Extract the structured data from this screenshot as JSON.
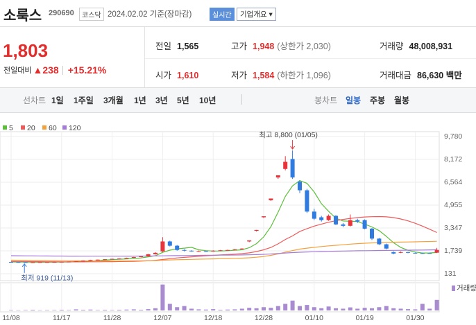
{
  "header": {
    "name": "소룩스",
    "code": "290690",
    "market": "코스닥",
    "date": "2024.02.02 기준(장마감)",
    "realtime": "실시간",
    "company_info": "기업개요 ▾"
  },
  "price": {
    "current": "1,803",
    "change_label": "전일대비",
    "change": "▲238",
    "change_rate": "+15.21%"
  },
  "info": [
    {
      "label": "전일",
      "value": "1,565"
    },
    {
      "label": "고가",
      "value": "1,948",
      "note": "(상한가 2,030)"
    },
    {
      "label": "거래량",
      "value": "48,008,931"
    },
    {
      "label": "시가",
      "value": "1,610"
    },
    {
      "label": "저가",
      "value": "1,584",
      "note": "(하한가 1,096)"
    },
    {
      "label": "거래대금",
      "value": "86,630",
      "unit": "백만"
    }
  ],
  "tabs": {
    "line_chart": "선차트",
    "line_periods": [
      "1일",
      "1주일",
      "3개월",
      "1년",
      "3년",
      "5년",
      "10년"
    ],
    "candle_chart": "봉차트",
    "candle_periods": [
      "일봉",
      "주봉",
      "월봉"
    ]
  },
  "chart_data": {
    "type": "candlestick",
    "categories": [
      "11/08",
      null,
      null,
      null,
      null,
      null,
      null,
      "11/17",
      null,
      null,
      null,
      null,
      null,
      null,
      "11/28",
      null,
      null,
      null,
      null,
      null,
      null,
      "12/07",
      null,
      null,
      null,
      null,
      null,
      null,
      "12/18",
      null,
      null,
      null,
      null,
      null,
      null,
      "12/28",
      null,
      null,
      null,
      null,
      null,
      null,
      "01/10",
      null,
      null,
      null,
      null,
      null,
      null,
      "01/19",
      null,
      null,
      null,
      null,
      null,
      null,
      "01/30",
      null,
      null,
      null
    ],
    "open": [
      960,
      950,
      940,
      925,
      935,
      945,
      950,
      960,
      970,
      980,
      1000,
      1050,
      1100,
      1120,
      1150,
      1180,
      1200,
      1250,
      1300,
      1350,
      1500,
      1700,
      2400,
      2100,
      1800,
      1750,
      1700,
      1720,
      1700,
      1750,
      1780,
      1800,
      1850,
      2400,
      3150,
      4100,
      5300,
      6900,
      7500,
      8200,
      6600,
      6000,
      4500,
      4100,
      3900,
      4200,
      3600,
      3500,
      3900,
      3900,
      3300,
      2600,
      2200,
      1650,
      1600,
      1650,
      1600,
      1580,
      1580,
      1610
    ],
    "high": [
      970,
      960,
      945,
      945,
      955,
      960,
      970,
      980,
      990,
      1010,
      1060,
      1110,
      1130,
      1160,
      1190,
      1210,
      1260,
      1310,
      1360,
      1520,
      1650,
      2700,
      2450,
      2150,
      1850,
      1780,
      1760,
      1740,
      1780,
      1800,
      1820,
      1870,
      1920,
      2470,
      3210,
      4170,
      5420,
      7050,
      8400,
      8800,
      6700,
      6100,
      4700,
      4200,
      4300,
      4250,
      3700,
      4300,
      4000,
      3950,
      3350,
      2650,
      2250,
      1700,
      1700,
      1680,
      1620,
      1600,
      1600,
      1948
    ],
    "low": [
      940,
      930,
      925,
      919,
      930,
      940,
      945,
      955,
      965,
      975,
      990,
      1040,
      1090,
      1110,
      1140,
      1170,
      1190,
      1240,
      1290,
      1340,
      1480,
      1650,
      2050,
      1750,
      1700,
      1680,
      1690,
      1680,
      1690,
      1730,
      1760,
      1790,
      1840,
      2350,
      3100,
      4050,
      5250,
      6800,
      7400,
      6800,
      5800,
      4400,
      3900,
      3800,
      3850,
      3550,
      3400,
      3450,
      3700,
      3250,
      2500,
      2150,
      1850,
      1500,
      1580,
      1570,
      1550,
      1540,
      1550,
      1584
    ],
    "close": [
      950,
      940,
      930,
      935,
      945,
      950,
      960,
      970,
      980,
      1000,
      1050,
      1100,
      1120,
      1150,
      1180,
      1200,
      1250,
      1300,
      1350,
      1500,
      1600,
      2400,
      2100,
      1800,
      1750,
      1700,
      1720,
      1700,
      1750,
      1780,
      1800,
      1850,
      1900,
      2470,
      3210,
      4170,
      5420,
      7050,
      8000,
      6900,
      6000,
      4500,
      4000,
      3900,
      4200,
      3600,
      3500,
      3900,
      3800,
      3300,
      2600,
      2200,
      1900,
      1550,
      1650,
      1600,
      1580,
      1560,
      1565,
      1803
    ],
    "up_color": "#e8353b",
    "down_color": "#2f7be0",
    "moving_averages": [
      {
        "name": "5",
        "color": "#5cbf3a",
        "values": [
          960,
          955,
          950,
          945,
          940,
          940,
          944,
          952,
          961,
          972,
          992,
          1020,
          1050,
          1084,
          1120,
          1150,
          1172,
          1200,
          1240,
          1320,
          1400,
          1630,
          1790,
          1880,
          1930,
          1990,
          1814,
          1754,
          1724,
          1730,
          1750,
          1780,
          1816,
          1960,
          2246,
          2720,
          3440,
          4464,
          5570,
          6308,
          6674,
          6490,
          5880,
          5060,
          4520,
          4040,
          3840,
          3820,
          3800,
          3620,
          3420,
          3160,
          2760,
          2310,
          1980,
          1780,
          1656,
          1588,
          1591,
          1622
        ]
      },
      {
        "name": "20",
        "color": "#ee5a5a",
        "values": [
          1000,
          995,
          990,
          985,
          980,
          975,
          972,
          970,
          968,
          966,
          966,
          968,
          970,
          975,
          980,
          988,
          995,
          1005,
          1020,
          1040,
          1070,
          1130,
          1190,
          1240,
          1280,
          1320,
          1355,
          1390,
          1420,
          1450,
          1480,
          1510,
          1545,
          1600,
          1690,
          1810,
          1980,
          2230,
          2540,
          2790,
          3100,
          3300,
          3480,
          3620,
          3750,
          3860,
          3950,
          4020,
          4080,
          4120,
          4140,
          4150,
          4130,
          4080,
          3980,
          3850,
          3680,
          3480,
          3260,
          3030
        ]
      },
      {
        "name": "60",
        "color": "#f5a13b",
        "values": [
          1080,
          1075,
          1070,
          1065,
          1060,
          1055,
          1050,
          1046,
          1042,
          1038,
          1035,
          1033,
          1031,
          1030,
          1030,
          1031,
          1033,
          1036,
          1040,
          1045,
          1052,
          1080,
          1100,
          1115,
          1128,
          1140,
          1152,
          1164,
          1176,
          1188,
          1200,
          1214,
          1228,
          1252,
          1290,
          1345,
          1420,
          1525,
          1650,
          1760,
          1860,
          1930,
          1990,
          2040,
          2090,
          2130,
          2170,
          2210,
          2245,
          2275,
          2300,
          2320,
          2335,
          2345,
          2355,
          2365,
          2375,
          2385,
          2395,
          2410
        ]
      },
      {
        "name": "120",
        "color": "#a57bd8",
        "values": [
          1400,
          1395,
          1390,
          1386,
          1382,
          1378,
          1375,
          1372,
          1370,
          1368,
          1366,
          1365,
          1364,
          1364,
          1365,
          1366,
          1368,
          1370,
          1373,
          1376,
          1380,
          1390,
          1398,
          1405,
          1410,
          1415,
          1420,
          1425,
          1430,
          1435,
          1440,
          1446,
          1452,
          1462,
          1476,
          1494,
          1518,
          1550,
          1586,
          1618,
          1644,
          1662,
          1678,
          1692,
          1705,
          1716,
          1726,
          1735,
          1743,
          1750,
          1756,
          1762,
          1768,
          1774,
          1780,
          1786,
          1792,
          1800,
          1808,
          1816
        ]
      }
    ],
    "volume": {
      "name": "거래량",
      "color": "#a98bd0",
      "values": [
        2000000,
        1000000,
        2000000,
        3000000,
        1000000,
        2000000,
        2000000,
        3000000,
        2000000,
        5000000,
        3000000,
        4000000,
        2000000,
        3000000,
        2000000,
        3000000,
        4000000,
        5000000,
        3000000,
        6000000,
        10000000,
        118000000,
        30000000,
        15000000,
        20000000,
        8000000,
        5000000,
        4000000,
        6000000,
        3000000,
        4000000,
        5000000,
        8000000,
        12000000,
        10000000,
        15000000,
        12000000,
        20000000,
        30000000,
        45000000,
        20000000,
        25000000,
        15000000,
        10000000,
        18000000,
        10000000,
        8000000,
        14000000,
        8000000,
        12000000,
        10000000,
        15000000,
        20000000,
        10000000,
        8000000,
        6000000,
        5000000,
        30000000,
        8000000,
        48008931
      ]
    },
    "volume_ylim": [
      0,
      120000000
    ],
    "ylim": [
      131,
      9780
    ],
    "yticks": [
      131,
      {
        "value": 1739,
        "label": "1,739"
      },
      {
        "value": 3347,
        "label": "3,347"
      },
      {
        "value": 4955,
        "label": "4,955"
      },
      {
        "value": 6564,
        "label": "6,564"
      },
      {
        "value": 8172,
        "label": "8,172"
      },
      {
        "value": 9780,
        "label": "9,780"
      }
    ],
    "grid": true,
    "annotations": [
      {
        "kind": "high",
        "text": "최고 8,800 (01/05)"
      },
      {
        "kind": "low",
        "text": "최저 919 (11/13)"
      }
    ]
  }
}
